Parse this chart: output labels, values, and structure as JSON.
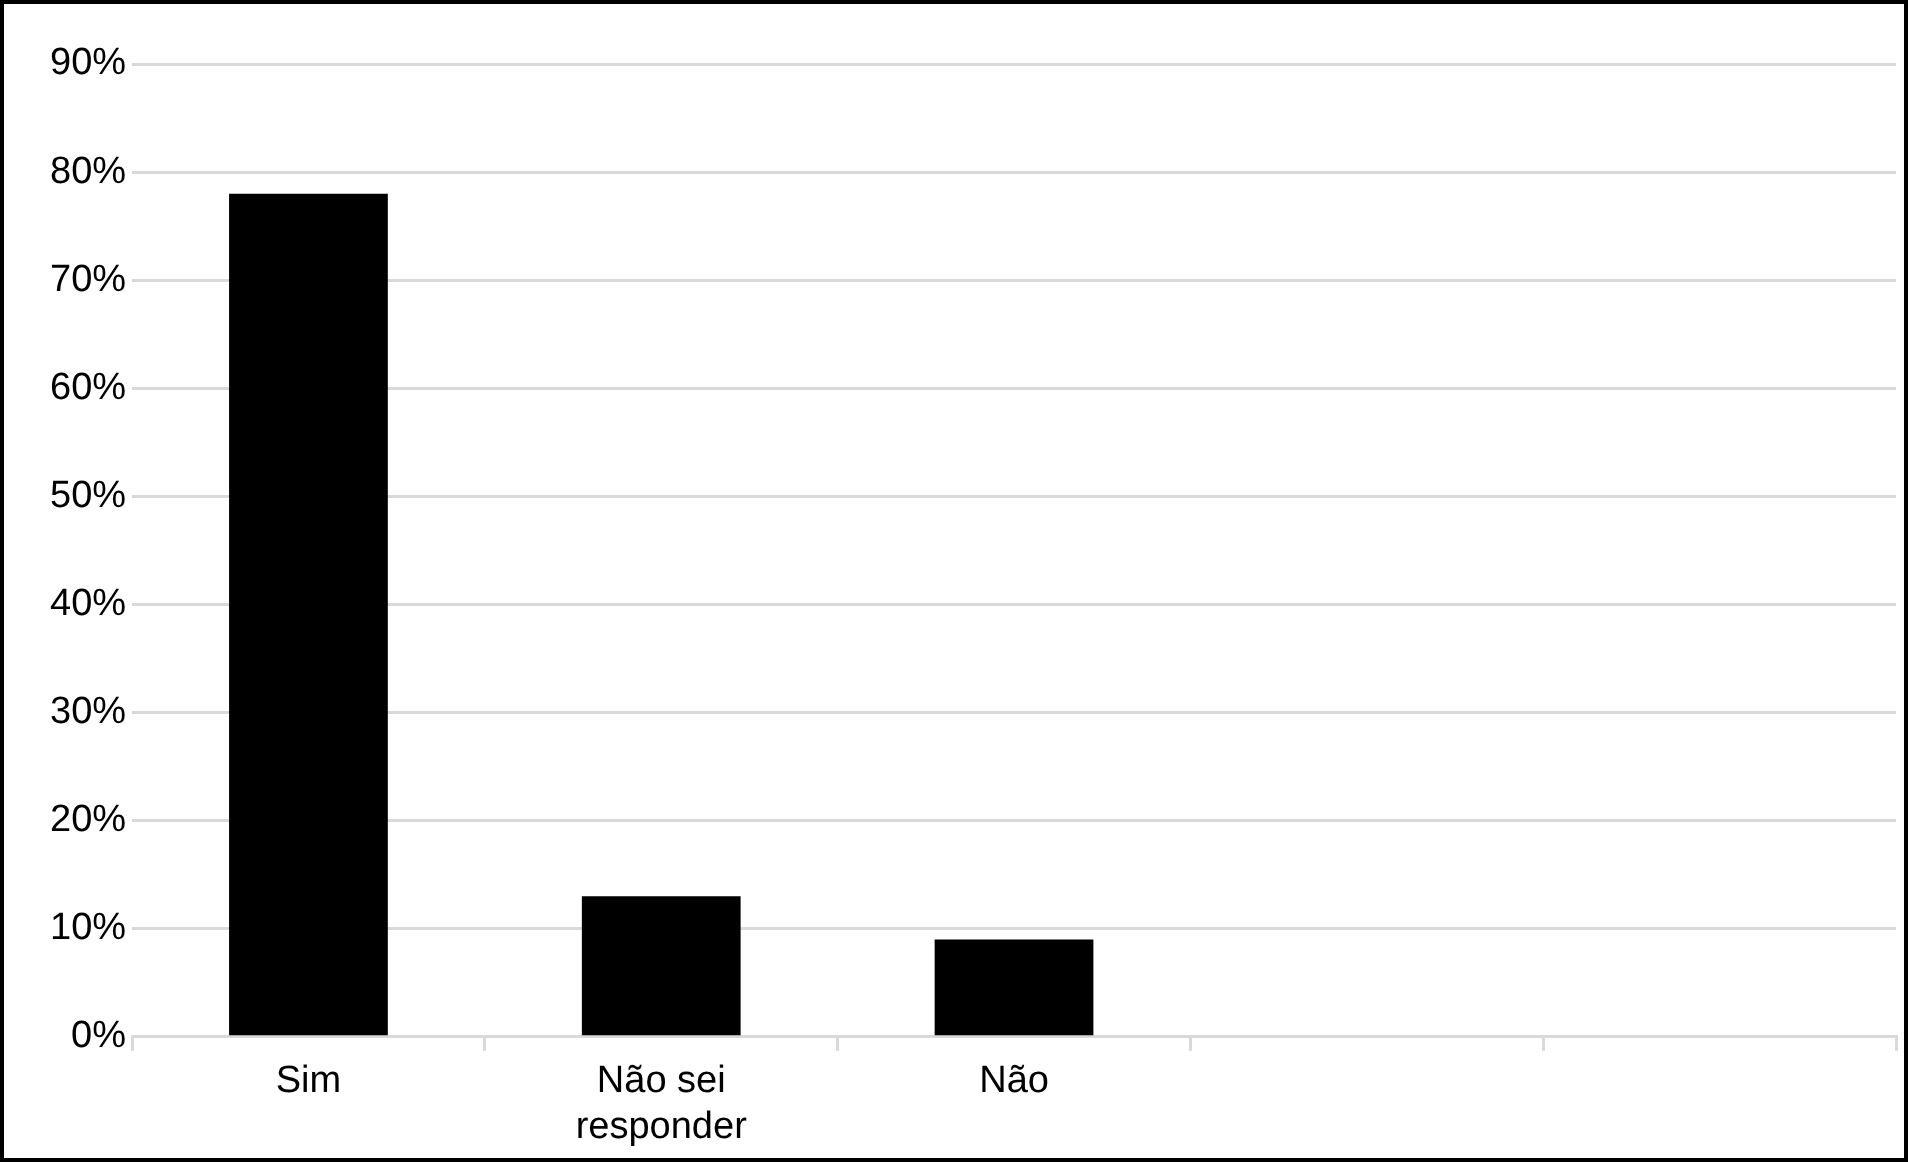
{
  "chart_data": {
    "type": "bar",
    "categories": [
      "Sim",
      "Não sei responder",
      "Não",
      null,
      null
    ],
    "values": [
      78,
      13,
      9,
      null,
      null
    ],
    "color": "#000000",
    "ylim": [
      0,
      90
    ],
    "yticks": [
      {
        "value": 0,
        "label": "0%"
      },
      {
        "value": 10,
        "label": "10%"
      },
      {
        "value": 20,
        "label": "20%"
      },
      {
        "value": 30,
        "label": "30%"
      },
      {
        "value": 40,
        "label": "40%"
      },
      {
        "value": 50,
        "label": "50%"
      },
      {
        "value": 60,
        "label": "60%"
      },
      {
        "value": 70,
        "label": "70%"
      },
      {
        "value": 80,
        "label": "80%"
      },
      {
        "value": 90,
        "label": "90%"
      }
    ],
    "grid": "y",
    "legend": false
  }
}
